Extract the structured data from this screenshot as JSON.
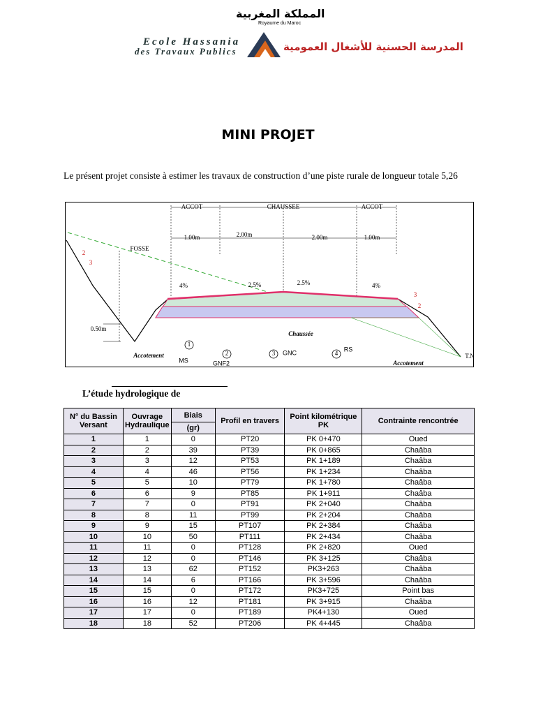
{
  "header": {
    "kingdom_ar": "المملكة المغربية",
    "kingdom_fr": "Royaume du Maroc",
    "school_fr_1": "Ecole Hassania",
    "school_fr_2": "des Travaux Publics",
    "school_ar": "المدرسة الحسنية للأشغال العمومية"
  },
  "title": "MINI PROJET",
  "intro": "Le présent projet consiste à estimer les travaux de construction d’une piste rurale de longueur totale 5,26",
  "diagram": {
    "labels": [
      "ACCOT",
      "CHAUSSEE",
      "ACCOT",
      "1.00m",
      "2.00m",
      "2.00m",
      "1.00m",
      "FOSSE",
      "2",
      "3",
      "4%",
      "2.5%",
      "2.5%",
      "4%",
      "3",
      "2",
      "0.50m",
      "1",
      "2",
      "3",
      "4",
      "MS",
      "GNF2",
      "GNC",
      "RS",
      "Chaussée",
      "Accotement",
      "Accotement",
      "T.N"
    ]
  },
  "section_heading": "L’étude hydrologique de",
  "table": {
    "headers": [
      "N° du Bassin Versant",
      "Ouvrage Hydraulique",
      "Biais",
      "Profil en travers",
      "Point kilométrique PK",
      "Contrainte rencontrée"
    ],
    "subheader": "(gr)",
    "rows": [
      [
        "1",
        "1",
        "0",
        "PT20",
        "PK 0+470",
        "Oued"
      ],
      [
        "2",
        "2",
        "39",
        "PT39",
        "PK 0+865",
        "Chaâba"
      ],
      [
        "3",
        "3",
        "12",
        "PT53",
        "PK 1+189",
        "Chaâba"
      ],
      [
        "4",
        "4",
        "46",
        "PT56",
        "PK 1+234",
        "Chaâba"
      ],
      [
        "5",
        "5",
        "10",
        "PT79",
        "PK 1+780",
        "Chaâba"
      ],
      [
        "6",
        "6",
        "9",
        "PT85",
        "PK 1+911",
        "Chaâba"
      ],
      [
        "7",
        "7",
        "0",
        "PT91",
        "PK 2+040",
        "Chaâba"
      ],
      [
        "8",
        "8",
        "11",
        "PT99",
        "PK 2+204",
        "Chaâba"
      ],
      [
        "9",
        "9",
        "15",
        "PT107",
        "PK 2+384",
        "Chaâba"
      ],
      [
        "10",
        "10",
        "50",
        "PT111",
        "PK 2+434",
        "Chaâba"
      ],
      [
        "11",
        "11",
        "0",
        "PT128",
        "PK 2+820",
        "Oued"
      ],
      [
        "12",
        "12",
        "0",
        "PT146",
        "PK 3+125",
        "Chaâba"
      ],
      [
        "13",
        "13",
        "62",
        "PT152",
        "PK3+263",
        "Chaâba"
      ],
      [
        "14",
        "14",
        "6",
        "PT166",
        "PK 3+596",
        "Chaâba"
      ],
      [
        "15",
        "15",
        "0",
        "PT172",
        "PK3+725",
        "Point bas"
      ],
      [
        "16",
        "16",
        "12",
        "PT181",
        "PK 3+915",
        "Chaâba"
      ],
      [
        "17",
        "17",
        "0",
        "PT189",
        "PK4+130",
        "Oued"
      ],
      [
        "18",
        "18",
        "52",
        "PT206",
        "PK 4+445",
        "Chaâba"
      ]
    ]
  }
}
